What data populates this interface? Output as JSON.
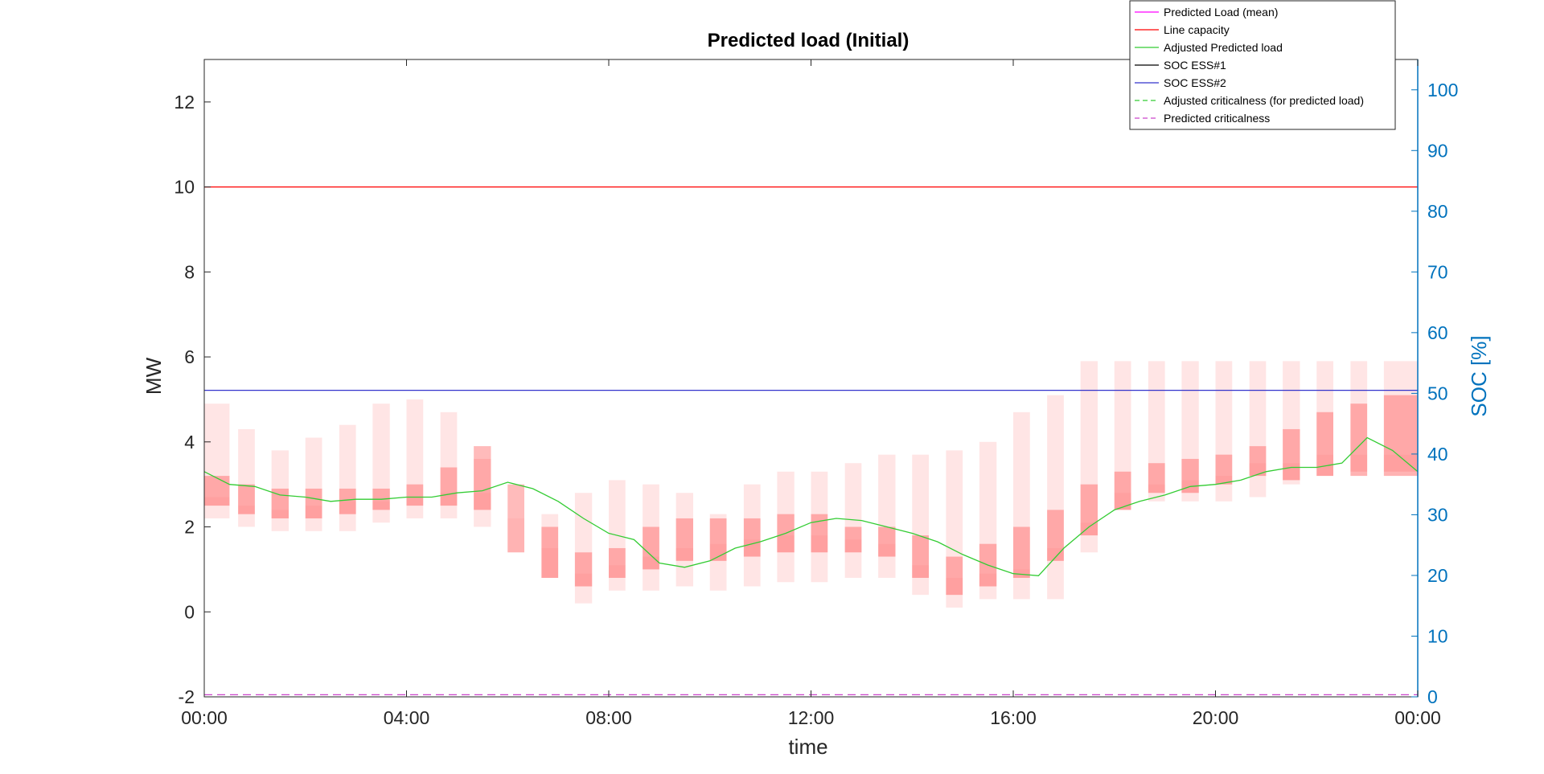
{
  "chart_data": {
    "type": "area",
    "title": "Predicted load (Initial)",
    "xlabel": "time",
    "ylabel_left": "MW",
    "ylabel_right": "SOC [%]",
    "x_ticks": [
      "00:00",
      "04:00",
      "08:00",
      "12:00",
      "16:00",
      "20:00",
      "00:00"
    ],
    "x_range_hours": [
      0,
      24
    ],
    "ylim_left": [
      -2,
      13
    ],
    "y_ticks_left": [
      -2,
      0,
      2,
      4,
      6,
      8,
      10,
      12
    ],
    "ylim_right": [
      0,
      105
    ],
    "y_ticks_right": [
      0,
      10,
      20,
      30,
      40,
      50,
      60,
      70,
      80,
      90,
      100
    ],
    "grid": false,
    "legend_position": "top-right",
    "colors": {
      "predicted_load_mean": "#ff00ff",
      "line_capacity": "#ff0000",
      "adjusted_predicted_load": "#33cc33",
      "soc_ess1": "#000000",
      "soc_ess2": "#3333cc",
      "adjusted_criticalness": "#33cc33",
      "predicted_criticalness": "#cc44cc",
      "right_axis": "#0072bd",
      "band": "#ff0000"
    },
    "legend": [
      {
        "label": "Predicted Load (mean)",
        "style": "solid",
        "color": "#ff00ff"
      },
      {
        "label": "Line capacity",
        "style": "solid",
        "color": "#ff0000"
      },
      {
        "label": "Adjusted Predicted load",
        "style": "solid",
        "color": "#33cc33"
      },
      {
        "label": "SOC ESS#1",
        "style": "solid",
        "color": "#000000"
      },
      {
        "label": "SOC ESS#2",
        "style": "solid",
        "color": "#3333cc"
      },
      {
        "label": "Adjusted criticalness (for predicted load)",
        "style": "dashed",
        "color": "#33cc33"
      },
      {
        "label": "Predicted criticalness",
        "style": "dashed",
        "color": "#cc44cc"
      }
    ],
    "line_capacity_mw": 10,
    "soc_ess2_percent": 50.5,
    "predicted_criticalness_mw": -1.95,
    "band_percentiles": {
      "hour_start": [
        0,
        0.67,
        1.33,
        2,
        2.67,
        3.33,
        4,
        4.67,
        5.33,
        6,
        6.67,
        7.33,
        8,
        8.67,
        9.33,
        10,
        10.67,
        11.33,
        12,
        12.67,
        13.33,
        14,
        14.67,
        15.33,
        16,
        16.67,
        17.33,
        18,
        18.67,
        19.33,
        20,
        20.67,
        21.33,
        22,
        22.67,
        23.33
      ],
      "hour_end": [
        0.5,
        1,
        1.67,
        2.33,
        3,
        3.67,
        4.33,
        5,
        5.67,
        6.33,
        7,
        7.67,
        8.33,
        9,
        9.67,
        10.33,
        11,
        11.67,
        12.33,
        13,
        13.67,
        14.33,
        15,
        15.67,
        16.33,
        17,
        17.67,
        18.33,
        19,
        19.67,
        20.33,
        21,
        21.67,
        22.33,
        23,
        24
      ],
      "p5": [
        2.2,
        2.0,
        1.9,
        1.9,
        1.9,
        2.1,
        2.2,
        2.2,
        2.0,
        2.0,
        0.8,
        0.2,
        0.5,
        0.5,
        0.6,
        0.5,
        0.6,
        0.7,
        0.7,
        0.8,
        0.8,
        0.4,
        0.1,
        0.3,
        0.3,
        0.3,
        1.4,
        2.4,
        2.6,
        2.6,
        2.6,
        2.7,
        3.0,
        3.2,
        3.3,
        3.3
      ],
      "p25": [
        2.5,
        2.3,
        2.2,
        2.2,
        2.3,
        2.4,
        2.5,
        2.5,
        2.4,
        1.4,
        0.8,
        0.6,
        0.8,
        1.0,
        1.2,
        1.2,
        1.3,
        1.4,
        1.4,
        1.4,
        1.3,
        0.8,
        0.4,
        0.6,
        0.8,
        1.2,
        1.8,
        2.4,
        2.8,
        2.8,
        3.0,
        3.2,
        3.1,
        3.2,
        3.2,
        3.2
      ],
      "p50": [
        2.7,
        2.5,
        2.4,
        2.5,
        2.6,
        2.6,
        2.7,
        2.8,
        2.8,
        2.2,
        1.5,
        0.9,
        1.1,
        1.3,
        1.5,
        1.6,
        1.7,
        1.8,
        1.8,
        1.7,
        1.6,
        1.1,
        0.8,
        0.9,
        1.0,
        1.5,
        2.1,
        2.8,
        3.0,
        3.1,
        3.2,
        3.5,
        3.5,
        3.7,
        3.7,
        3.7
      ],
      "p75": [
        3.2,
        3.0,
        2.9,
        2.9,
        2.9,
        2.9,
        3.0,
        3.4,
        3.9,
        3.0,
        2.0,
        1.4,
        1.5,
        2.0,
        2.2,
        2.2,
        2.2,
        2.3,
        2.3,
        2.0,
        2.0,
        1.8,
        1.3,
        1.6,
        2.0,
        2.4,
        3.0,
        3.3,
        3.5,
        3.6,
        3.7,
        3.9,
        4.3,
        4.7,
        4.9,
        5.1
      ],
      "p95": [
        4.9,
        4.3,
        3.8,
        4.1,
        4.4,
        4.9,
        5.0,
        4.7,
        3.6,
        2.0,
        2.3,
        2.8,
        3.1,
        3.0,
        2.8,
        2.3,
        3.0,
        3.3,
        3.3,
        3.5,
        3.7,
        3.7,
        3.8,
        4.0,
        4.7,
        5.1,
        5.9,
        5.9,
        5.9,
        5.9,
        5.9,
        5.9,
        5.9,
        5.9,
        5.9,
        5.9
      ]
    },
    "adjusted_predicted_load": {
      "x_hours": [
        0,
        0.5,
        1,
        1.5,
        2,
        2.5,
        3,
        3.5,
        4,
        4.5,
        5,
        5.5,
        6,
        6.5,
        7,
        7.5,
        8,
        8.5,
        9,
        9.5,
        10,
        10.5,
        11,
        11.5,
        12,
        12.5,
        13,
        13.5,
        14,
        14.5,
        15,
        15.5,
        16,
        16.5,
        17,
        17.5,
        18,
        18.5,
        19,
        19.5,
        20,
        20.5,
        21,
        21.5,
        22,
        22.5,
        23,
        23.5,
        24
      ],
      "y_mw": [
        3.3,
        3.0,
        2.95,
        2.75,
        2.7,
        2.6,
        2.65,
        2.65,
        2.7,
        2.7,
        2.8,
        2.85,
        3.05,
        2.9,
        2.6,
        2.2,
        1.85,
        1.7,
        1.15,
        1.05,
        1.2,
        1.5,
        1.65,
        1.85,
        2.1,
        2.2,
        2.15,
        2.0,
        1.85,
        1.65,
        1.35,
        1.1,
        0.9,
        0.85,
        1.5,
        2.0,
        2.4,
        2.6,
        2.75,
        2.95,
        3.0,
        3.1,
        3.3,
        3.4,
        3.4,
        3.5,
        4.1,
        3.8,
        3.3
      ]
    }
  }
}
